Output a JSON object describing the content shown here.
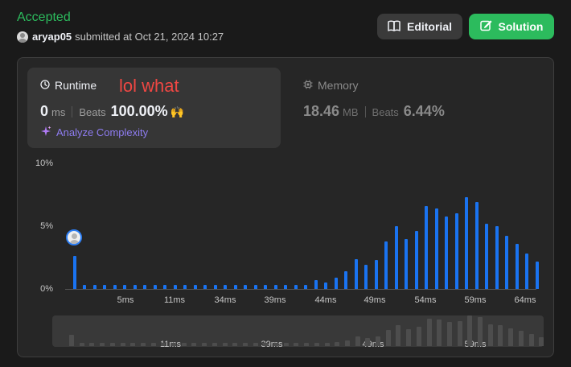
{
  "header": {
    "status": "Accepted",
    "username": "aryap05",
    "submitted_text": "submitted at Oct 21, 2024 10:27",
    "editorial_label": "Editorial",
    "solution_label": "Solution"
  },
  "runtime": {
    "title": "Runtime",
    "annotation": "lol what",
    "value": "0",
    "unit": "ms",
    "beats_label": "Beats",
    "beats_value": "100.00%",
    "beats_icon": "🙌",
    "analyze_label": "Analyze Complexity"
  },
  "memory": {
    "title": "Memory",
    "value": "18.46",
    "unit": "MB",
    "beats_label": "Beats",
    "beats_value": "6.44%"
  },
  "colors": {
    "accepted": "#2cbb5d",
    "solution_button": "#2cbb5d",
    "bar": "#1a73f0",
    "annotation": "#ef4743",
    "analyze": "#8e7cf0"
  },
  "icons": {
    "editorial": "book-icon",
    "solution": "edit-icon",
    "runtime": "clock-icon",
    "memory": "chip-icon",
    "analyze": "sparkle-icon"
  },
  "chart_data": {
    "type": "bar",
    "title": "",
    "xlabel": "",
    "ylabel": "",
    "ylim": [
      0,
      10
    ],
    "y_ticks": [
      "10%",
      "5%",
      "0%"
    ],
    "x_ticks": [
      "5ms",
      "11ms",
      "34ms",
      "39ms",
      "44ms",
      "49ms",
      "54ms",
      "59ms",
      "64ms"
    ],
    "values": [
      2.6,
      0.3,
      0.3,
      0.3,
      0.3,
      0.3,
      0.3,
      0.3,
      0.3,
      0.3,
      0.3,
      0.3,
      0.3,
      0.3,
      0.3,
      0.3,
      0.3,
      0.3,
      0.3,
      0.3,
      0.3,
      0.3,
      0.3,
      0.3,
      0.7,
      0.5,
      0.9,
      1.4,
      2.4,
      1.9,
      2.3,
      3.8,
      5.0,
      4.0,
      4.6,
      6.6,
      6.4,
      5.8,
      6.0,
      7.3,
      6.9,
      5.2,
      5.0,
      4.2,
      3.6,
      2.8,
      2.2
    ],
    "highlighted_index": 0,
    "mini_x_ticks": [
      "11ms",
      "39ms",
      "49ms",
      "59ms"
    ]
  }
}
